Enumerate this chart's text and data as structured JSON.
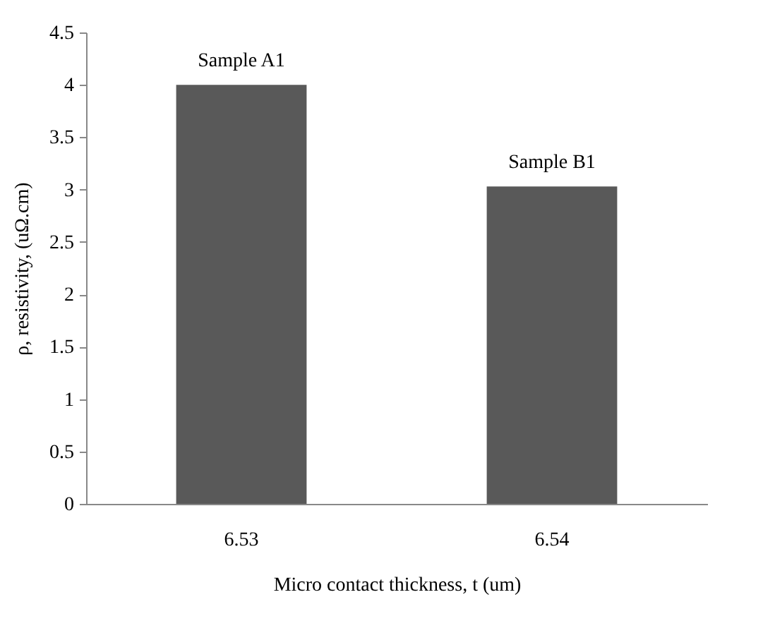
{
  "chart_data": {
    "type": "bar",
    "xlabel": "Micro contact thickness, t (um)",
    "ylabel": "ρ, resistivity, (uΩ.cm)",
    "categories": [
      "6.53",
      "6.54"
    ],
    "values": [
      4.0,
      3.03
    ],
    "color": "#595959",
    "ylim": [
      0,
      4.5
    ],
    "yticks": [
      0,
      0.5,
      1,
      1.5,
      2,
      2.5,
      3,
      3.5,
      4,
      4.5
    ],
    "annotations": [
      {
        "text": "Sample A1",
        "x": "6.53",
        "y": 4.0
      },
      {
        "text": "Sample B1",
        "x": "6.54",
        "y": 3.03
      }
    ]
  }
}
